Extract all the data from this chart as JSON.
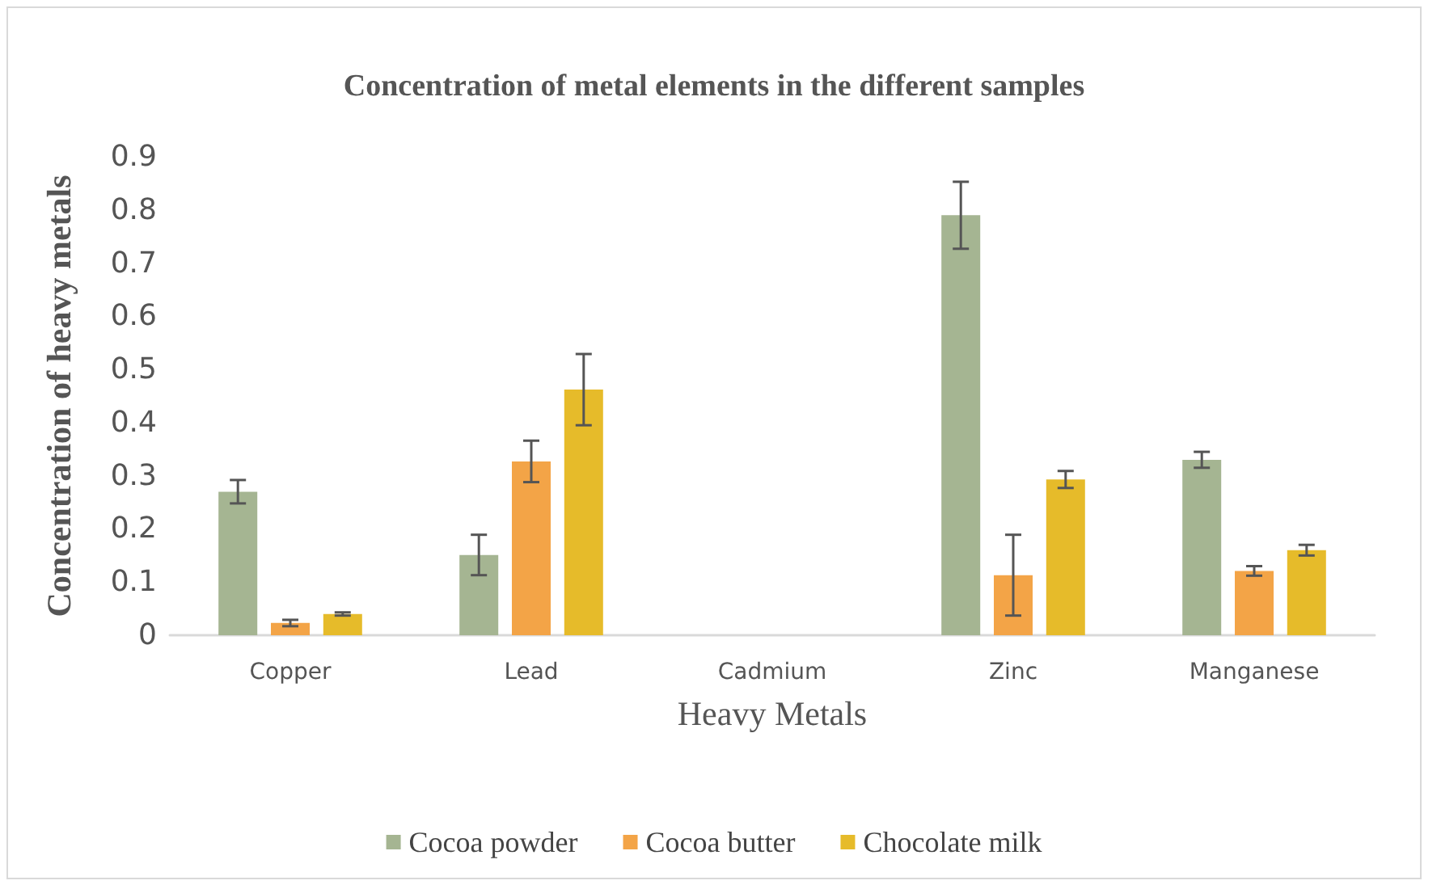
{
  "chart_data": {
    "type": "bar",
    "title": "Concentration of metal elements in the different samples",
    "xlabel": "Heavy Metals",
    "ylabel": "Concentration of heavy metals",
    "categories": [
      "Copper",
      "Lead",
      "Cadmium",
      "Zinc",
      "Manganese"
    ],
    "series": [
      {
        "name": "Cocoa powder",
        "color": "#a5b592",
        "values": [
          0.27,
          0.151,
          0,
          0.79,
          0.33
        ],
        "errors": [
          0.022,
          0.038,
          null,
          0.063,
          0.015
        ]
      },
      {
        "name": "Cocoa butter",
        "color": "#f3a447",
        "values": [
          0.023,
          0.327,
          0,
          0.113,
          0.121
        ],
        "errors": [
          0.006,
          0.039,
          null,
          0.076,
          0.009
        ]
      },
      {
        "name": "Chocolate milk",
        "color": "#e6bb2a",
        "values": [
          0.04,
          0.462,
          0,
          0.293,
          0.16
        ],
        "errors": [
          0.003,
          0.067,
          null,
          0.016,
          0.01
        ]
      }
    ],
    "ylim": [
      0,
      0.9
    ],
    "yticks": [
      0,
      0.1,
      0.2,
      0.3,
      0.4,
      0.5,
      0.6,
      0.7,
      0.8,
      0.9
    ],
    "grid": false,
    "legend": "bottom"
  }
}
